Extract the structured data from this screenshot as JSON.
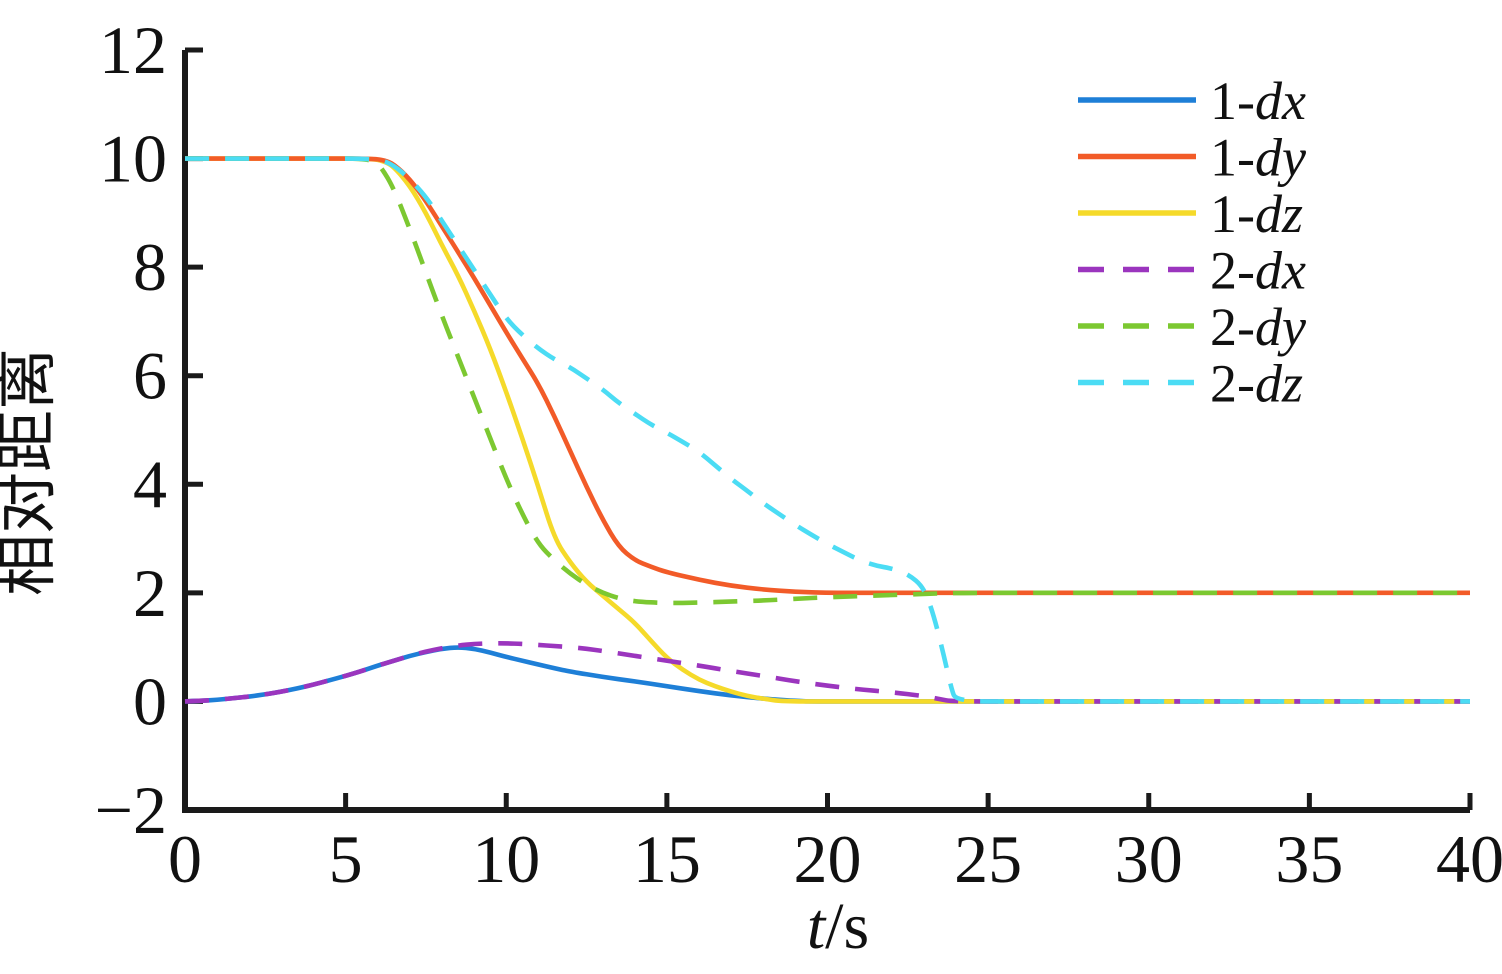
{
  "figure": {
    "background": "#ffffff",
    "axis_color": "#1a1a1a",
    "text_color": "#111111"
  },
  "chart_data": {
    "type": "line",
    "title": "",
    "xlabel": "t/s",
    "xlabel_parts": {
      "italic": "t",
      "rest": "/s"
    },
    "ylabel": "相对距离",
    "xlim": [
      0,
      40
    ],
    "ylim": [
      -2,
      12
    ],
    "xticks": [
      0,
      5,
      10,
      15,
      20,
      25,
      30,
      35,
      40
    ],
    "yticks": [
      -2,
      0,
      2,
      4,
      6,
      8,
      10,
      12
    ],
    "grid": false,
    "legend_position": "top-right",
    "series": [
      {
        "name": "1-dx",
        "color": "#1E7FD7",
        "line_style": "solid",
        "points": [
          [
            0,
            0
          ],
          [
            0.5,
            0.01
          ],
          [
            1,
            0.03
          ],
          [
            1.5,
            0.06
          ],
          [
            2,
            0.09
          ],
          [
            2.5,
            0.13
          ],
          [
            3,
            0.18
          ],
          [
            3.5,
            0.24
          ],
          [
            4,
            0.31
          ],
          [
            4.5,
            0.39
          ],
          [
            5,
            0.47
          ],
          [
            5.5,
            0.56
          ],
          [
            6,
            0.66
          ],
          [
            6.5,
            0.75
          ],
          [
            7,
            0.84
          ],
          [
            7.5,
            0.91
          ],
          [
            8,
            0.97
          ],
          [
            8.5,
            1.0
          ],
          [
            9,
            0.97
          ],
          [
            9.5,
            0.9
          ],
          [
            10,
            0.82
          ],
          [
            10.5,
            0.75
          ],
          [
            11,
            0.68
          ],
          [
            11.5,
            0.61
          ],
          [
            12,
            0.55
          ],
          [
            13,
            0.45
          ],
          [
            14,
            0.37
          ],
          [
            15,
            0.28
          ],
          [
            16,
            0.19
          ],
          [
            17,
            0.11
          ],
          [
            18,
            0.05
          ],
          [
            19,
            0.01
          ],
          [
            19.5,
            0
          ],
          [
            22,
            0
          ],
          [
            26,
            0
          ],
          [
            30,
            0
          ],
          [
            35,
            0
          ],
          [
            40,
            0
          ]
        ]
      },
      {
        "name": "1-dy",
        "color": "#F25B28",
        "line_style": "solid",
        "points": [
          [
            0,
            10
          ],
          [
            2,
            10
          ],
          [
            4,
            10
          ],
          [
            5.8,
            10
          ],
          [
            6.2,
            9.97
          ],
          [
            6.5,
            9.9
          ],
          [
            7,
            9.62
          ],
          [
            7.5,
            9.22
          ],
          [
            8,
            8.75
          ],
          [
            8.5,
            8.28
          ],
          [
            9,
            7.8
          ],
          [
            9.5,
            7.3
          ],
          [
            10,
            6.8
          ],
          [
            10.5,
            6.32
          ],
          [
            11,
            5.85
          ],
          [
            11.5,
            5.25
          ],
          [
            12,
            4.6
          ],
          [
            12.5,
            3.95
          ],
          [
            13,
            3.35
          ],
          [
            13.5,
            2.85
          ],
          [
            14,
            2.6
          ],
          [
            14.5,
            2.48
          ],
          [
            15,
            2.38
          ],
          [
            16,
            2.24
          ],
          [
            17,
            2.13
          ],
          [
            18,
            2.06
          ],
          [
            19,
            2.02
          ],
          [
            20,
            2
          ],
          [
            22,
            2
          ],
          [
            25,
            2
          ],
          [
            30,
            2
          ],
          [
            35,
            2
          ],
          [
            40,
            2
          ]
        ]
      },
      {
        "name": "1-dz",
        "color": "#F5DA2A",
        "line_style": "solid",
        "points": [
          [
            0,
            10
          ],
          [
            2,
            10
          ],
          [
            4,
            10
          ],
          [
            5.8,
            10
          ],
          [
            6.2,
            9.95
          ],
          [
            6.5,
            9.85
          ],
          [
            7,
            9.5
          ],
          [
            7.5,
            9.0
          ],
          [
            8,
            8.4
          ],
          [
            8.5,
            7.85
          ],
          [
            9,
            7.2
          ],
          [
            9.5,
            6.5
          ],
          [
            10,
            5.7
          ],
          [
            10.5,
            4.85
          ],
          [
            11,
            3.95
          ],
          [
            11.5,
            3.0
          ],
          [
            12,
            2.55
          ],
          [
            12.5,
            2.2
          ],
          [
            13,
            1.95
          ],
          [
            13.5,
            1.7
          ],
          [
            14,
            1.45
          ],
          [
            14.5,
            1.12
          ],
          [
            15,
            0.8
          ],
          [
            15.5,
            0.58
          ],
          [
            16,
            0.4
          ],
          [
            16.5,
            0.28
          ],
          [
            17,
            0.18
          ],
          [
            17.5,
            0.1
          ],
          [
            18,
            0.05
          ],
          [
            18.6,
            0
          ],
          [
            20,
            0
          ],
          [
            22,
            0
          ],
          [
            26,
            0
          ],
          [
            30,
            0
          ],
          [
            35,
            0
          ],
          [
            40,
            0
          ]
        ]
      },
      {
        "name": "2-dx",
        "color": "#9B35BE",
        "line_style": "dashed",
        "points": [
          [
            0,
            0
          ],
          [
            0.5,
            0.01
          ],
          [
            1,
            0.03
          ],
          [
            1.5,
            0.06
          ],
          [
            2,
            0.09
          ],
          [
            2.5,
            0.13
          ],
          [
            3,
            0.18
          ],
          [
            3.5,
            0.24
          ],
          [
            4,
            0.31
          ],
          [
            4.5,
            0.39
          ],
          [
            5,
            0.47
          ],
          [
            5.5,
            0.56
          ],
          [
            6,
            0.66
          ],
          [
            6.5,
            0.75
          ],
          [
            7,
            0.84
          ],
          [
            7.5,
            0.92
          ],
          [
            8,
            0.98
          ],
          [
            8.5,
            1.03
          ],
          [
            9,
            1.06
          ],
          [
            9.5,
            1.07
          ],
          [
            10,
            1.07
          ],
          [
            10.5,
            1.06
          ],
          [
            11,
            1.04
          ],
          [
            11.5,
            1.02
          ],
          [
            12,
            1.0
          ],
          [
            12.5,
            0.97
          ],
          [
            13,
            0.93
          ],
          [
            14,
            0.84
          ],
          [
            15,
            0.75
          ],
          [
            16,
            0.66
          ],
          [
            17,
            0.56
          ],
          [
            18,
            0.47
          ],
          [
            19,
            0.37
          ],
          [
            20,
            0.29
          ],
          [
            21,
            0.22
          ],
          [
            22,
            0.17
          ],
          [
            23,
            0.1
          ],
          [
            23.5,
            0.04
          ],
          [
            23.9,
            0
          ],
          [
            26,
            0
          ],
          [
            30,
            0
          ],
          [
            35,
            0
          ],
          [
            40,
            0
          ]
        ]
      },
      {
        "name": "2-dy",
        "color": "#7CC831",
        "line_style": "dashed",
        "points": [
          [
            0,
            10
          ],
          [
            2,
            10
          ],
          [
            4,
            10
          ],
          [
            5.8,
            10
          ],
          [
            6.1,
            9.85
          ],
          [
            6.5,
            9.45
          ],
          [
            7,
            8.7
          ],
          [
            7.5,
            7.9
          ],
          [
            8,
            7.1
          ],
          [
            8.5,
            6.35
          ],
          [
            9,
            5.6
          ],
          [
            9.5,
            4.85
          ],
          [
            10,
            4.1
          ],
          [
            10.5,
            3.45
          ],
          [
            11,
            2.9
          ],
          [
            11.5,
            2.6
          ],
          [
            12,
            2.35
          ],
          [
            12.5,
            2.15
          ],
          [
            13,
            2.0
          ],
          [
            13.5,
            1.9
          ],
          [
            14,
            1.84
          ],
          [
            15,
            1.81
          ],
          [
            16,
            1.82
          ],
          [
            17,
            1.84
          ],
          [
            18,
            1.86
          ],
          [
            19,
            1.89
          ],
          [
            20,
            1.92
          ],
          [
            21,
            1.94
          ],
          [
            22,
            1.96
          ],
          [
            23,
            1.98
          ],
          [
            24,
            2
          ],
          [
            27,
            2
          ],
          [
            30,
            2
          ],
          [
            35,
            2
          ],
          [
            40,
            2
          ]
        ]
      },
      {
        "name": "2-dz",
        "color": "#4BDCF4",
        "line_style": "dashed",
        "points": [
          [
            0,
            10
          ],
          [
            2,
            10
          ],
          [
            4,
            10
          ],
          [
            6,
            10
          ],
          [
            6.5,
            9.88
          ],
          [
            7,
            9.62
          ],
          [
            7.5,
            9.3
          ],
          [
            8,
            8.85
          ],
          [
            8.5,
            8.4
          ],
          [
            9,
            7.95
          ],
          [
            9.5,
            7.5
          ],
          [
            10,
            7.05
          ],
          [
            10.5,
            6.75
          ],
          [
            11,
            6.5
          ],
          [
            11.5,
            6.3
          ],
          [
            12,
            6.15
          ],
          [
            12.5,
            5.95
          ],
          [
            13,
            5.75
          ],
          [
            13.5,
            5.5
          ],
          [
            14,
            5.3
          ],
          [
            14.5,
            5.1
          ],
          [
            15,
            4.95
          ],
          [
            15.5,
            4.78
          ],
          [
            16,
            4.6
          ],
          [
            16.5,
            4.35
          ],
          [
            17,
            4.1
          ],
          [
            17.5,
            3.88
          ],
          [
            18,
            3.65
          ],
          [
            18.5,
            3.45
          ],
          [
            19,
            3.25
          ],
          [
            19.5,
            3.07
          ],
          [
            20,
            2.9
          ],
          [
            20.5,
            2.75
          ],
          [
            21,
            2.6
          ],
          [
            21.5,
            2.5
          ],
          [
            22,
            2.45
          ],
          [
            22.5,
            2.35
          ],
          [
            23,
            2.1
          ],
          [
            23.3,
            1.6
          ],
          [
            23.6,
            0.9
          ],
          [
            23.85,
            0.25
          ],
          [
            24,
            0
          ],
          [
            26,
            0
          ],
          [
            30,
            0
          ],
          [
            35,
            0
          ],
          [
            40,
            0
          ]
        ]
      }
    ]
  }
}
